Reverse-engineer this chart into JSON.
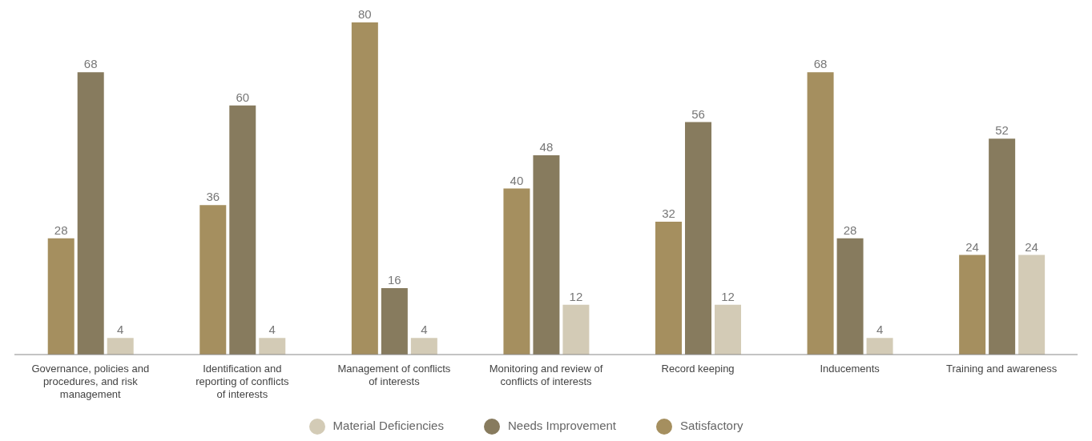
{
  "chart_data": {
    "type": "bar",
    "categories": [
      "Governance, policies and procedures, and risk management",
      "Identification and reporting of conflicts of interests",
      "Management of conflicts of interests",
      "Monitoring and review of conflicts of interests",
      "Record keeping",
      "Inducements",
      "Training and awareness"
    ],
    "series": [
      {
        "name": "Satisfactory",
        "color": "#a58f5f",
        "values": [
          28,
          36,
          80,
          40,
          32,
          68,
          24
        ]
      },
      {
        "name": "Needs Improvement",
        "color": "#877b5e",
        "values": [
          68,
          60,
          16,
          48,
          56,
          28,
          52
        ]
      },
      {
        "name": "Material Deficiencies",
        "color": "#d3cbb6",
        "values": [
          4,
          4,
          4,
          12,
          12,
          4,
          24
        ]
      }
    ],
    "data_labels": true,
    "grid": false,
    "legend": "bottom"
  }
}
